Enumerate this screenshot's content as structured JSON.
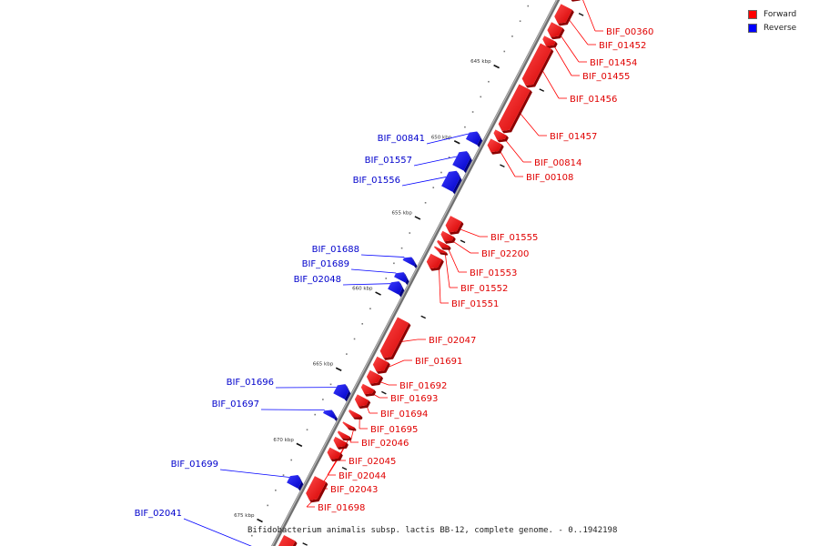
{
  "title": "Bifidobacterium animalis subsp. lactis BB-12, complete genome. - 0..1942198",
  "legend": [
    {
      "label": "Forward",
      "color": "#ff0000"
    },
    {
      "label": "Reverse",
      "color": "#0000ff"
    }
  ],
  "colors": {
    "forward": "#ff0000",
    "reverse": "#0000ff",
    "backbone": "#888888"
  },
  "scale": {
    "unit": "kbp",
    "major_ticks": [
      "640 kbp",
      "645 kbp",
      "650 kbp",
      "655 kbp",
      "660 kbp",
      "665 kbp",
      "670 kbp",
      "675 kbp"
    ]
  },
  "genes": [
    {
      "label": "BIF_00360",
      "strand": "forward",
      "start": 638.4,
      "end": 639.5
    },
    {
      "label": "BIF_01452",
      "strand": "forward",
      "start": 640.0,
      "end": 641.1
    },
    {
      "label": "BIF_01454",
      "strand": "forward",
      "start": 641.2,
      "end": 642.0
    },
    {
      "label": "BIF_01455",
      "strand": "forward",
      "start": 642.1,
      "end": 642.6
    },
    {
      "label": "BIF_01456",
      "strand": "forward",
      "start": 642.6,
      "end": 645.2
    },
    {
      "label": "BIF_01457",
      "strand": "forward",
      "start": 645.3,
      "end": 648.2
    },
    {
      "label": "BIF_00814",
      "strand": "forward",
      "start": 648.3,
      "end": 648.8
    },
    {
      "label": "BIF_00108",
      "strand": "forward",
      "start": 648.9,
      "end": 649.6
    },
    {
      "label": "BIF_00841",
      "strand": "reverse",
      "start": 648.9,
      "end": 649.6
    },
    {
      "label": "BIF_01557",
      "strand": "reverse",
      "start": 650.2,
      "end": 651.3
    },
    {
      "label": "BIF_01556",
      "strand": "reverse",
      "start": 651.5,
      "end": 652.7
    },
    {
      "label": "BIF_01555",
      "strand": "forward",
      "start": 654.0,
      "end": 654.9
    },
    {
      "label": "BIF_02200",
      "strand": "forward",
      "start": 655.0,
      "end": 655.5
    },
    {
      "label": "BIF_01553",
      "strand": "forward",
      "start": 655.6,
      "end": 655.9
    },
    {
      "label": "BIF_01552",
      "strand": "forward",
      "start": 656.0,
      "end": 656.2
    },
    {
      "label": "BIF_01551",
      "strand": "forward",
      "start": 656.5,
      "end": 657.3
    },
    {
      "label": "BIF_01688",
      "strand": "reverse",
      "start": 657.2,
      "end": 657.6
    },
    {
      "label": "BIF_01689",
      "strand": "reverse",
      "start": 658.2,
      "end": 658.7
    },
    {
      "label": "BIF_02048",
      "strand": "reverse",
      "start": 658.8,
      "end": 659.5
    },
    {
      "label": "BIF_02047",
      "strand": "forward",
      "start": 660.7,
      "end": 663.2
    },
    {
      "label": "BIF_01691",
      "strand": "forward",
      "start": 663.3,
      "end": 664.1
    },
    {
      "label": "BIF_01692",
      "strand": "forward",
      "start": 664.2,
      "end": 664.9
    },
    {
      "label": "BIF_01693",
      "strand": "forward",
      "start": 665.1,
      "end": 665.6
    },
    {
      "label": "BIF_01694",
      "strand": "forward",
      "start": 665.8,
      "end": 666.4
    },
    {
      "label": "BIF_01695",
      "strand": "forward",
      "start": 666.8,
      "end": 667.1
    },
    {
      "label": "BIF_02046",
      "strand": "forward",
      "start": 667.6,
      "end": 667.8
    },
    {
      "label": "BIF_02045",
      "strand": "forward",
      "start": 668.2,
      "end": 668.5
    },
    {
      "label": "BIF_02044",
      "strand": "forward",
      "start": 668.6,
      "end": 669.1
    },
    {
      "label": "BIF_02043",
      "strand": "forward",
      "start": 669.3,
      "end": 669.9
    },
    {
      "label": "BIF_01698",
      "strand": "forward",
      "start": 671.2,
      "end": 672.6
    },
    {
      "label": "BIF_01696",
      "strand": "reverse",
      "start": 665.6,
      "end": 666.4
    },
    {
      "label": "BIF_01697",
      "strand": "reverse",
      "start": 667.3,
      "end": 667.7
    },
    {
      "label": "BIF_01699",
      "strand": "reverse",
      "start": 671.6,
      "end": 672.3
    },
    {
      "label": "BIF_02041",
      "strand": "reverse",
      "start": 676.3,
      "end": 676.8
    },
    {
      "label": "",
      "strand": "forward",
      "start": 675.1,
      "end": 677.0
    }
  ]
}
